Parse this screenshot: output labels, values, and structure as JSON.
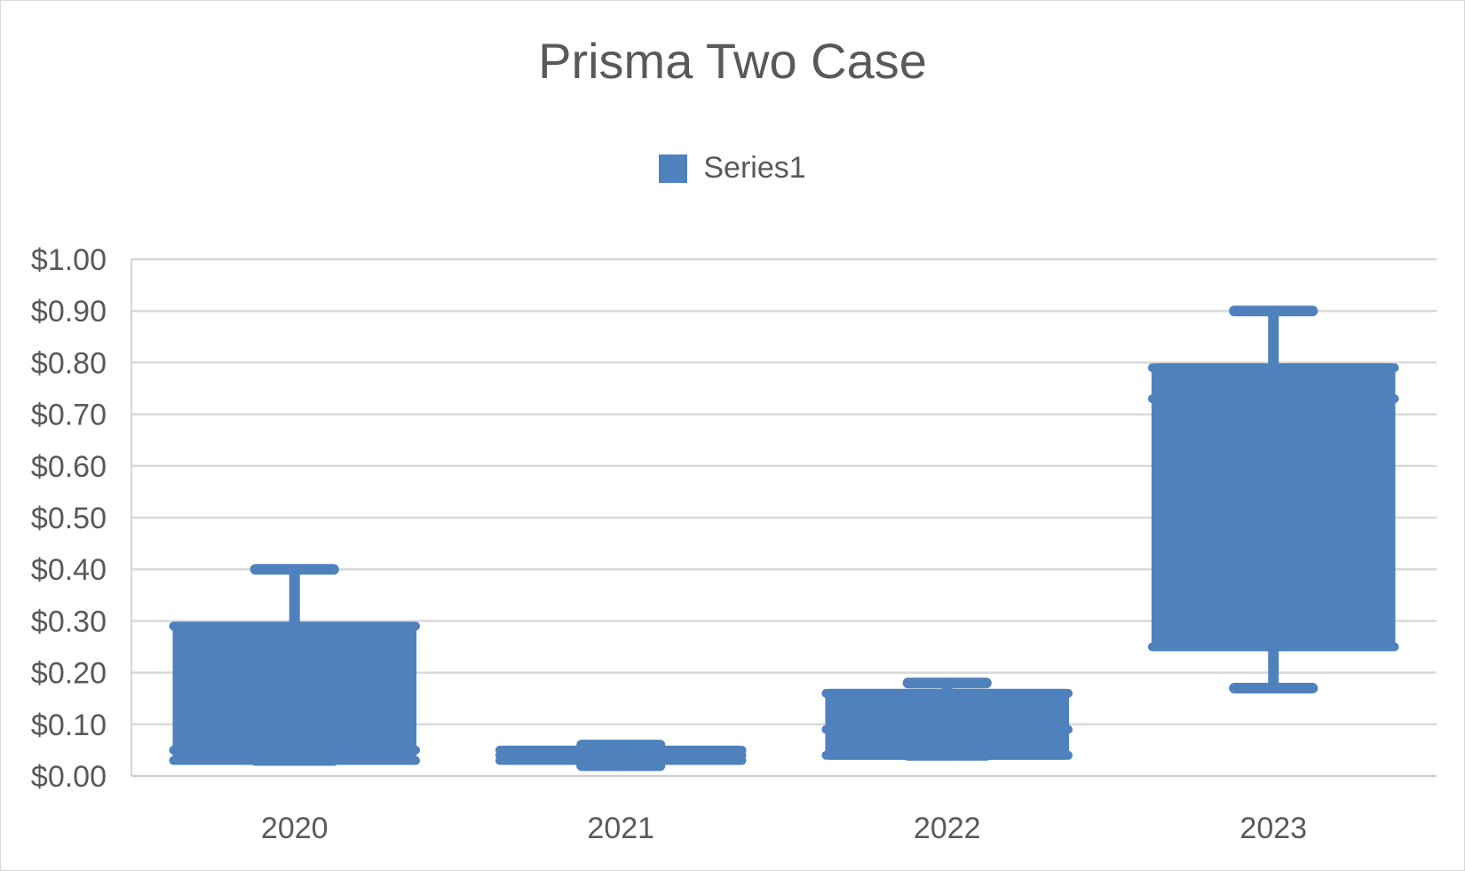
{
  "chart_data": {
    "type": "box",
    "title": "Prisma Two Case",
    "legend": {
      "position": "top",
      "entries": [
        "Series1"
      ]
    },
    "xlabel": "",
    "ylabel": "",
    "ylim": [
      0,
      1.0
    ],
    "y_ticks": [
      "$0.00",
      "$0.10",
      "$0.20",
      "$0.30",
      "$0.40",
      "$0.50",
      "$0.60",
      "$0.70",
      "$0.80",
      "$0.90",
      "$1.00"
    ],
    "grid": true,
    "color": "#4f81bd",
    "categories": [
      "2020",
      "2021",
      "2022",
      "2023"
    ],
    "series": [
      {
        "name": "Series1",
        "boxes": [
          {
            "category": "2020",
            "min": 0.03,
            "q1": 0.03,
            "median": 0.05,
            "q3": 0.29,
            "max": 0.4
          },
          {
            "category": "2021",
            "min": 0.02,
            "q1": 0.03,
            "median": 0.04,
            "q3": 0.05,
            "max": 0.06
          },
          {
            "category": "2022",
            "min": 0.04,
            "q1": 0.04,
            "median": 0.09,
            "q3": 0.16,
            "max": 0.18
          },
          {
            "category": "2023",
            "min": 0.17,
            "q1": 0.25,
            "median": 0.73,
            "q3": 0.79,
            "max": 0.9
          }
        ]
      }
    ]
  }
}
